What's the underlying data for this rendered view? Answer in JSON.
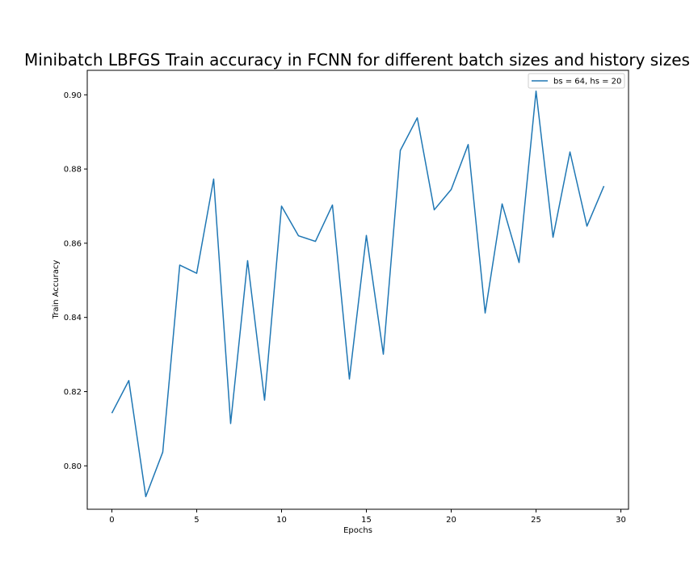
{
  "chart_data": {
    "type": "line",
    "title": "Minibatch LBFGS Train accuracy in FCNN for different batch sizes and history sizes",
    "xlabel": "Epochs",
    "ylabel": "Train Accuracy",
    "xlim": [
      -1.45,
      30.45
    ],
    "ylim": [
      0.7883,
      0.9066
    ],
    "xticks": [
      0,
      5,
      10,
      15,
      20,
      25,
      30
    ],
    "yticks": [
      0.8,
      0.82,
      0.84,
      0.86,
      0.88,
      0.9
    ],
    "xtick_labels": [
      "0",
      "5",
      "10",
      "15",
      "20",
      "25",
      "30"
    ],
    "ytick_labels": [
      "0.80",
      "0.82",
      "0.84",
      "0.86",
      "0.88",
      "0.90"
    ],
    "grid": false,
    "legend_position": "top-right",
    "series": [
      {
        "name": "bs = 64, hs = 20",
        "color": "#1f77b4",
        "x": [
          0,
          1,
          2,
          3,
          4,
          5,
          6,
          7,
          8,
          9,
          10,
          11,
          12,
          13,
          14,
          15,
          16,
          17,
          18,
          19,
          20,
          21,
          22,
          23,
          24,
          25,
          26,
          27,
          28,
          29
        ],
        "y": [
          0.8142,
          0.823,
          0.7917,
          0.8037,
          0.8541,
          0.8519,
          0.8773,
          0.8114,
          0.8553,
          0.8177,
          0.87,
          0.862,
          0.8605,
          0.8703,
          0.8234,
          0.8621,
          0.8301,
          0.885,
          0.8938,
          0.869,
          0.8745,
          0.8866,
          0.8412,
          0.8706,
          0.8548,
          0.901,
          0.8616,
          0.8846,
          0.8646,
          0.8754
        ]
      }
    ]
  }
}
